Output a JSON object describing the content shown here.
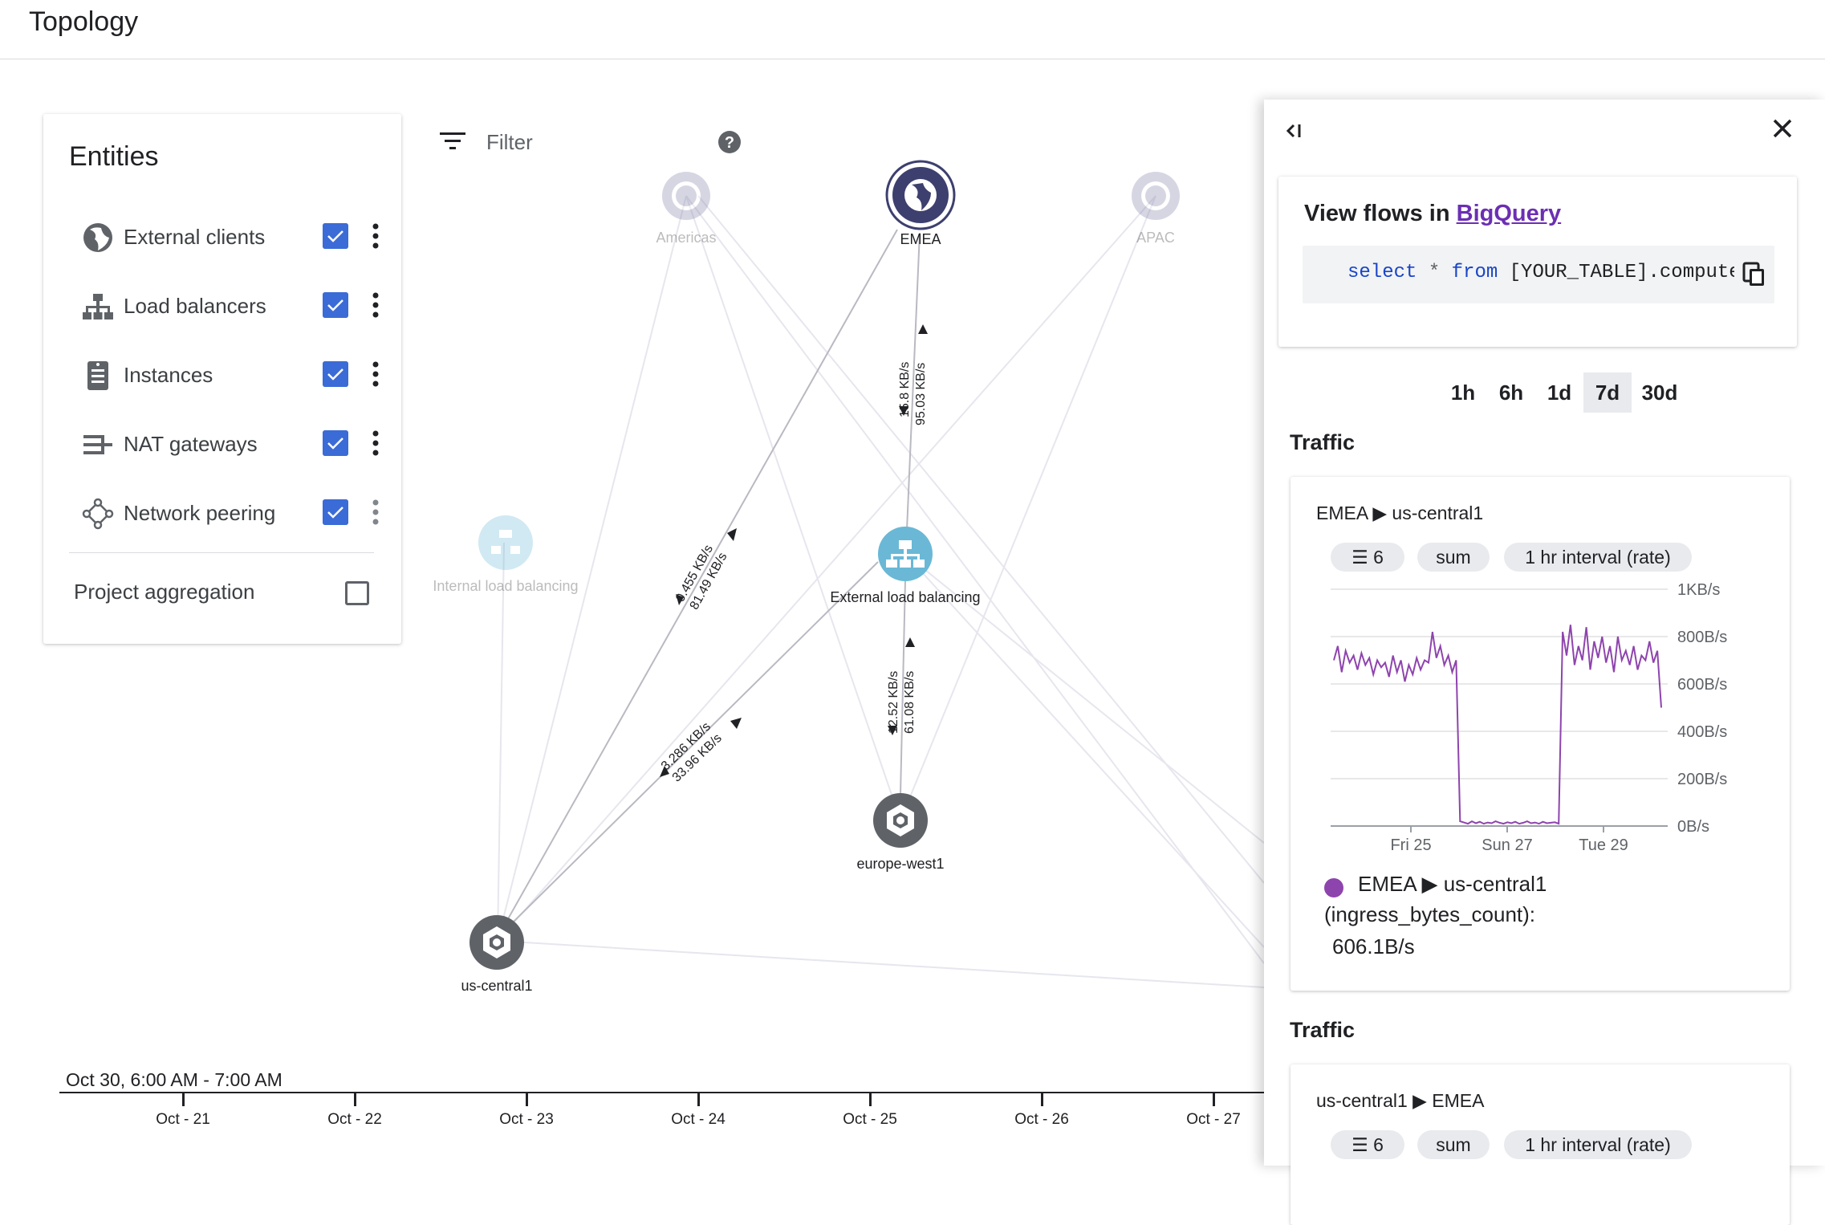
{
  "header": {
    "title": "Topology"
  },
  "entities": {
    "title": "Entities",
    "items": [
      {
        "label": "External clients",
        "checked": true,
        "icon": "globe-icon"
      },
      {
        "label": "Load balancers",
        "checked": true,
        "icon": "load-balancer-icon"
      },
      {
        "label": "Instances",
        "checked": true,
        "icon": "instance-icon"
      },
      {
        "label": "NAT gateways",
        "checked": true,
        "icon": "nat-gateway-icon"
      },
      {
        "label": "Network peering",
        "checked": true,
        "icon": "network-peering-icon"
      }
    ],
    "project_aggregation": {
      "label": "Project aggregation",
      "checked": false
    }
  },
  "filter": {
    "label": "Filter"
  },
  "graph": {
    "nodes": {
      "americas": "Americas",
      "emea": "EMEA",
      "apac": "APAC",
      "internal_lb": "Internal load balancing",
      "external_lb": "External load balancing",
      "europe_west1": "europe-west1",
      "us_central1": "us-central1"
    },
    "edge_labels": {
      "emea_extlb_a": "15.8 KB/s",
      "emea_extlb_b": "95.03 KB/s",
      "emea_usc_a": "0.455 KB/s",
      "emea_usc_b": "81.49 KB/s",
      "extlb_euw_a": "12.52 KB/s",
      "extlb_euw_b": "61.08 KB/s",
      "extlb_usc_a": "3.286 KB/s",
      "extlb_usc_b": "33.96 KB/s"
    },
    "colors": {
      "node_dark": "#5f6368",
      "node_region": "#3d3f6e",
      "node_lb": "#6ab8d6"
    }
  },
  "timeline": {
    "range": "Oct 30, 6:00 AM - 7:00 AM",
    "ticks": [
      "Oct - 21",
      "Oct - 22",
      "Oct - 23",
      "Oct - 24",
      "Oct - 25",
      "Oct - 26",
      "Oct - 27"
    ]
  },
  "panel": {
    "bq": {
      "title_prefix": "View flows in ",
      "title_link": "BigQuery",
      "code_kw1": "select",
      "code_op": "*",
      "code_kw2": "from",
      "code_rest": "[YOUR_TABLE].compute_googleapis_com_vpc_flows"
    },
    "ranges": [
      "1h",
      "6h",
      "1d",
      "7d",
      "30d"
    ],
    "active_range": "7d",
    "traffic": [
      {
        "heading": "Traffic",
        "route_from": "EMEA",
        "route_to": "us-central1",
        "chips": {
          "filter_count": "6",
          "aggregation": "sum",
          "interval": "1 hr interval (rate)"
        },
        "legend_route_from": "EMEA",
        "legend_route_to": "us-central1",
        "legend_metric": "(ingress_bytes_count):",
        "legend_value": "606.1B/s"
      },
      {
        "heading": "Traffic",
        "route_from": "us-central1",
        "route_to": "EMEA",
        "chips": {
          "filter_count": "6",
          "aggregation": "sum",
          "interval": "1 hr interval (rate)"
        }
      }
    ]
  },
  "chart_data": {
    "type": "line",
    "title": "",
    "xlabel": "",
    "ylabel": "",
    "x_ticks": [
      "Fri 25",
      "Sun 27",
      "Tue 29"
    ],
    "y_ticks": [
      "1KB/s",
      "800B/s",
      "600B/s",
      "400B/s",
      "200B/s",
      "0B/s"
    ],
    "ylim": [
      0,
      1000
    ],
    "grid": true,
    "color": "#8e44ad",
    "series": [
      {
        "name": "",
        "values": [
          700,
          760,
          650,
          740,
          690,
          720,
          660,
          730,
          680,
          710,
          640,
          700,
          670,
          690,
          630,
          720,
          650,
          700,
          610,
          680,
          640,
          710,
          660,
          700,
          690,
          820,
          710,
          760,
          680,
          720,
          650,
          700,
          20,
          15,
          10,
          20,
          12,
          18,
          10,
          15,
          12,
          20,
          14,
          10,
          16,
          12,
          18,
          10,
          14,
          20,
          12,
          15,
          10,
          18,
          12,
          14,
          16,
          10,
          820,
          720,
          850,
          680,
          760,
          700,
          840,
          660,
          780,
          710,
          800,
          690,
          760,
          650,
          800,
          700,
          740,
          680,
          760,
          660,
          720,
          700,
          780,
          690,
          740,
          500
        ]
      }
    ]
  }
}
